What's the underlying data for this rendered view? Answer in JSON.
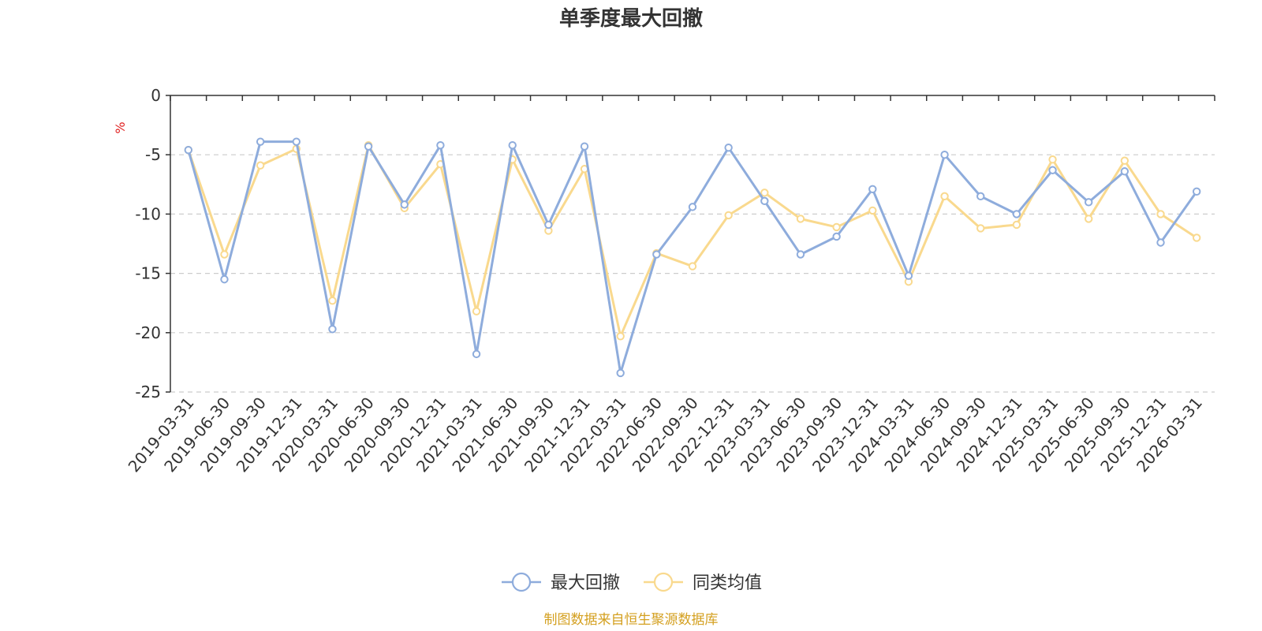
{
  "chart_data": {
    "type": "line",
    "title": "单季度最大回撤",
    "ylabel": "%",
    "ylim": [
      -25,
      0
    ],
    "yticks": [
      0,
      -5,
      -10,
      -15,
      -20,
      -25
    ],
    "grid": true,
    "legend_position": "bottom",
    "categories": [
      "2019-03-31",
      "2019-06-30",
      "2019-09-30",
      "2019-12-31",
      "2020-03-31",
      "2020-06-30",
      "2020-09-30",
      "2020-12-31",
      "2021-03-31",
      "2021-06-30",
      "2021-09-30",
      "2021-12-31",
      "2022-03-31",
      "2022-06-30",
      "2022-09-30",
      "2022-12-31",
      "2023-03-31",
      "2023-06-30",
      "2023-09-30",
      "2023-12-31",
      "2024-03-31",
      "2024-06-30",
      "2024-09-30",
      "2024-12-31",
      "2025-03-31",
      "2025-06-30",
      "2025-09-30",
      "2025-12-31",
      "2026-03-31"
    ],
    "series": [
      {
        "name": "最大回撤",
        "color": "#8eacdc",
        "values": [
          -4.6,
          -15.5,
          -3.9,
          -3.9,
          -19.7,
          -4.3,
          -9.2,
          -4.2,
          -21.8,
          -4.2,
          -10.9,
          -4.3,
          -23.4,
          -13.4,
          -9.4,
          -4.4,
          -8.9,
          -13.4,
          -11.9,
          -7.9,
          -15.2,
          -5.0,
          -8.5,
          -10.0,
          -6.3,
          -9.0,
          -6.4,
          -12.4,
          -8.1
        ]
      },
      {
        "name": "同类均值",
        "color": "#f9d98e",
        "values": [
          -4.6,
          -13.4,
          -5.9,
          -4.5,
          -17.3,
          -4.2,
          -9.5,
          -5.8,
          -18.2,
          -5.4,
          -11.4,
          -6.2,
          -20.3,
          -13.3,
          -14.4,
          -10.1,
          -8.2,
          -10.4,
          -11.1,
          -9.7,
          -15.7,
          -8.5,
          -11.2,
          -10.9,
          -5.4,
          -10.4,
          -5.5,
          -10.0,
          -12.0
        ]
      }
    ]
  },
  "source_text": "制图数据来自恒生聚源数据库",
  "colors": {
    "axis": "#333333",
    "grid": "#cccccc",
    "unit": "#e02020",
    "source": "#d4a020"
  }
}
